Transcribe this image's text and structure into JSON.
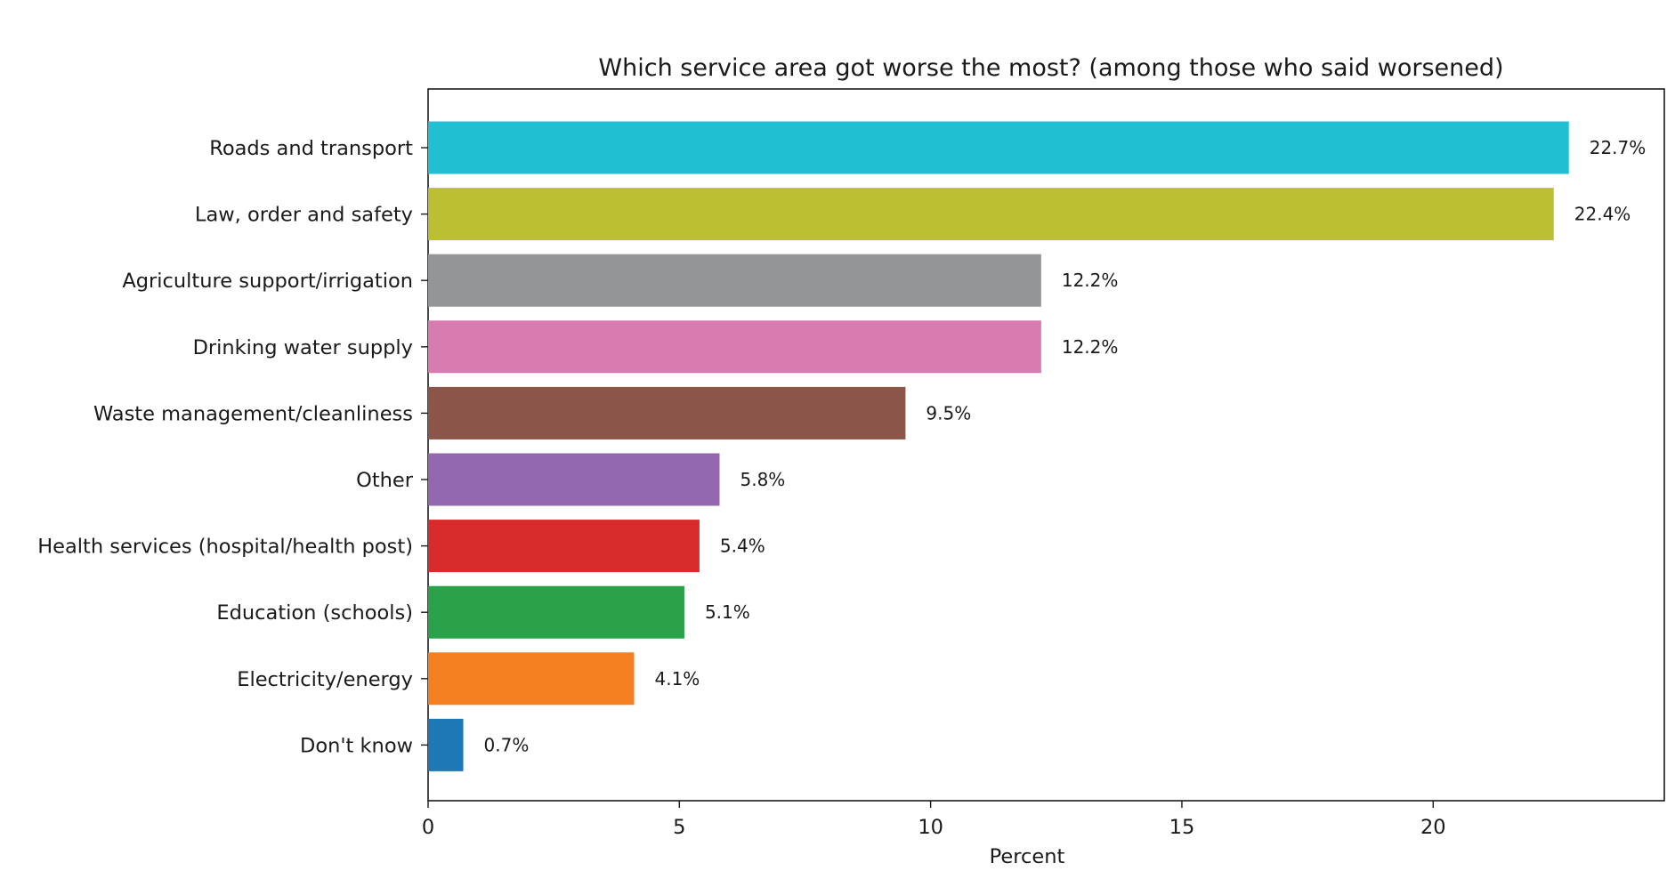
{
  "chart_data": {
    "type": "bar",
    "orientation": "horizontal",
    "title": "Which service area got worse the most? (among those who said worsened)",
    "xlabel": "Percent",
    "ylabel": "",
    "xlim": [
      0,
      24.6
    ],
    "xticks": [
      0,
      5,
      10,
      15,
      20
    ],
    "grid": false,
    "categories": [
      "Roads and transport",
      "Law, order and safety",
      "Agriculture support/irrigation",
      "Drinking water supply",
      "Waste management/cleanliness",
      "Other",
      "Health services (hospital/health post)",
      "Education (schools)",
      "Electricity/energy",
      "Don't know"
    ],
    "values": [
      22.7,
      22.4,
      12.2,
      12.2,
      9.5,
      5.8,
      5.4,
      5.1,
      4.1,
      0.7
    ],
    "data_labels": [
      "22.7%",
      "22.4%",
      "12.2%",
      "12.2%",
      "9.5%",
      "5.8%",
      "5.4%",
      "5.1%",
      "4.1%",
      "0.7%"
    ],
    "colors": [
      "#21bfd2",
      "#bcbf32",
      "#939597",
      "#d77bb1",
      "#8b5649",
      "#9368b0",
      "#d82b2b",
      "#2aa24a",
      "#f58022",
      "#1f78b6"
    ]
  }
}
